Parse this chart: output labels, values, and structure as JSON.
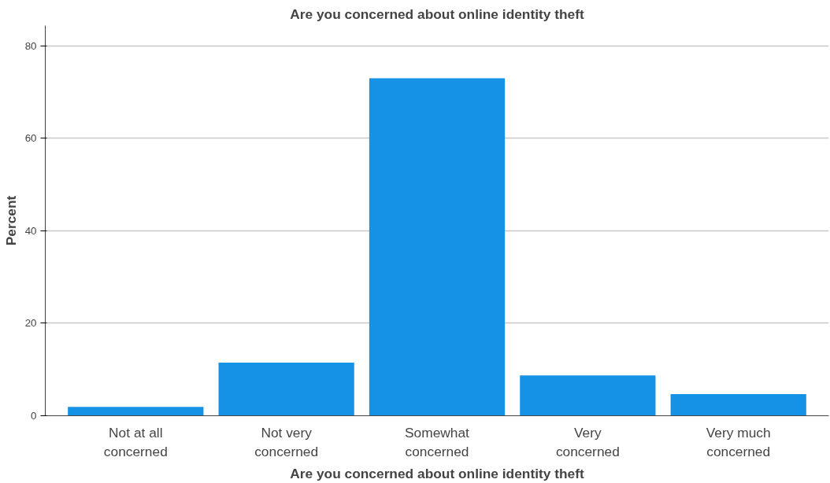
{
  "chart_data": {
    "type": "bar",
    "title": "Are you concerned about online identity theft",
    "xlabel": "Are you concerned about online identity theft",
    "ylabel": "Percent",
    "categories": [
      "Not at all concerned",
      "Not very concerned",
      "Somewhat concerned",
      "Very concerned",
      "Very much concerned"
    ],
    "values": [
      1.9,
      11.5,
      73.0,
      8.7,
      4.7
    ],
    "color": "#1591e6",
    "ylim": [
      0,
      84.4
    ],
    "yticks": [
      0,
      20,
      40,
      60,
      80
    ],
    "grid": "y"
  }
}
